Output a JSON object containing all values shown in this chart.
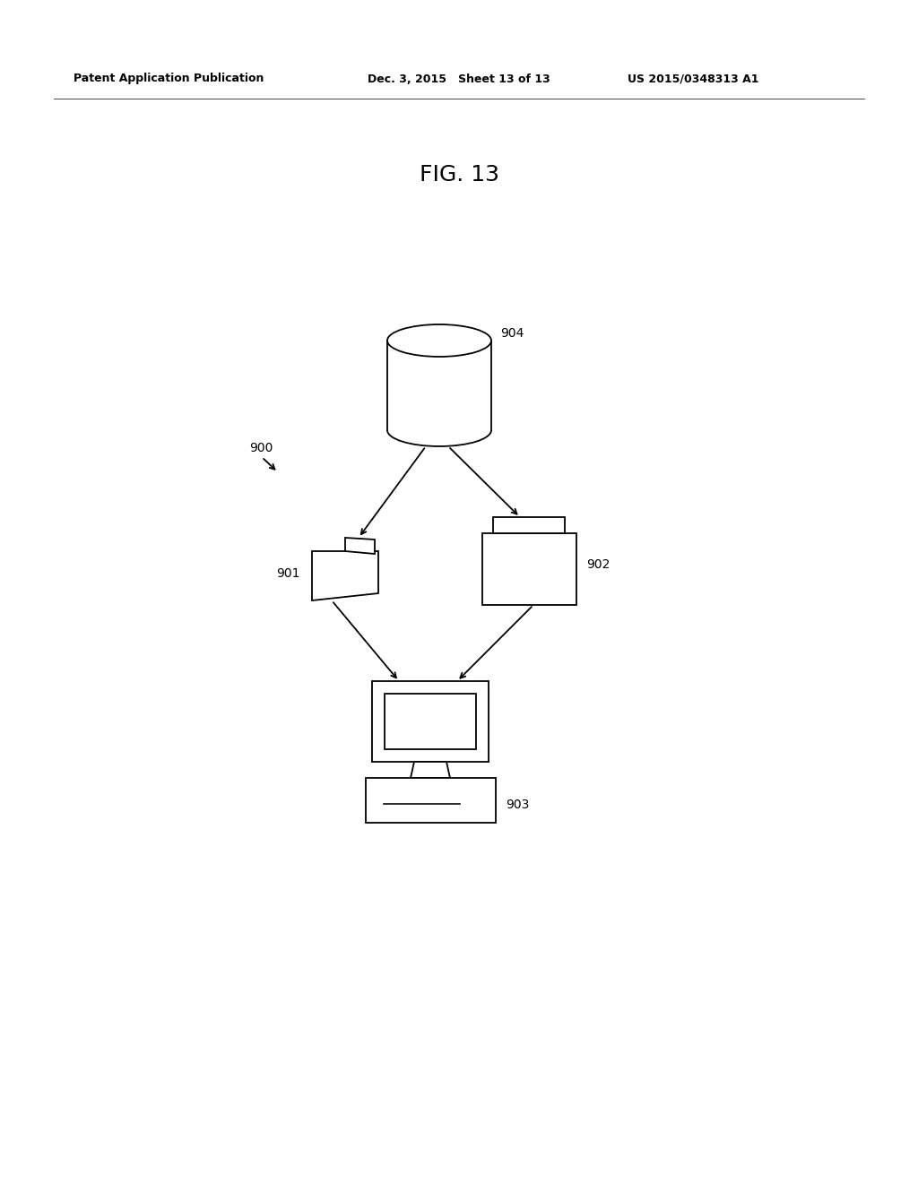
{
  "bg_color": "#ffffff",
  "title_text": "FIG. 13",
  "header_left": "Patent Application Publication",
  "header_mid": "Dec. 3, 2015   Sheet 13 of 13",
  "header_right": "US 2015/0348313 A1",
  "label_900": "900",
  "label_904": "904",
  "label_901": "901",
  "label_902": "902",
  "label_903": "903"
}
